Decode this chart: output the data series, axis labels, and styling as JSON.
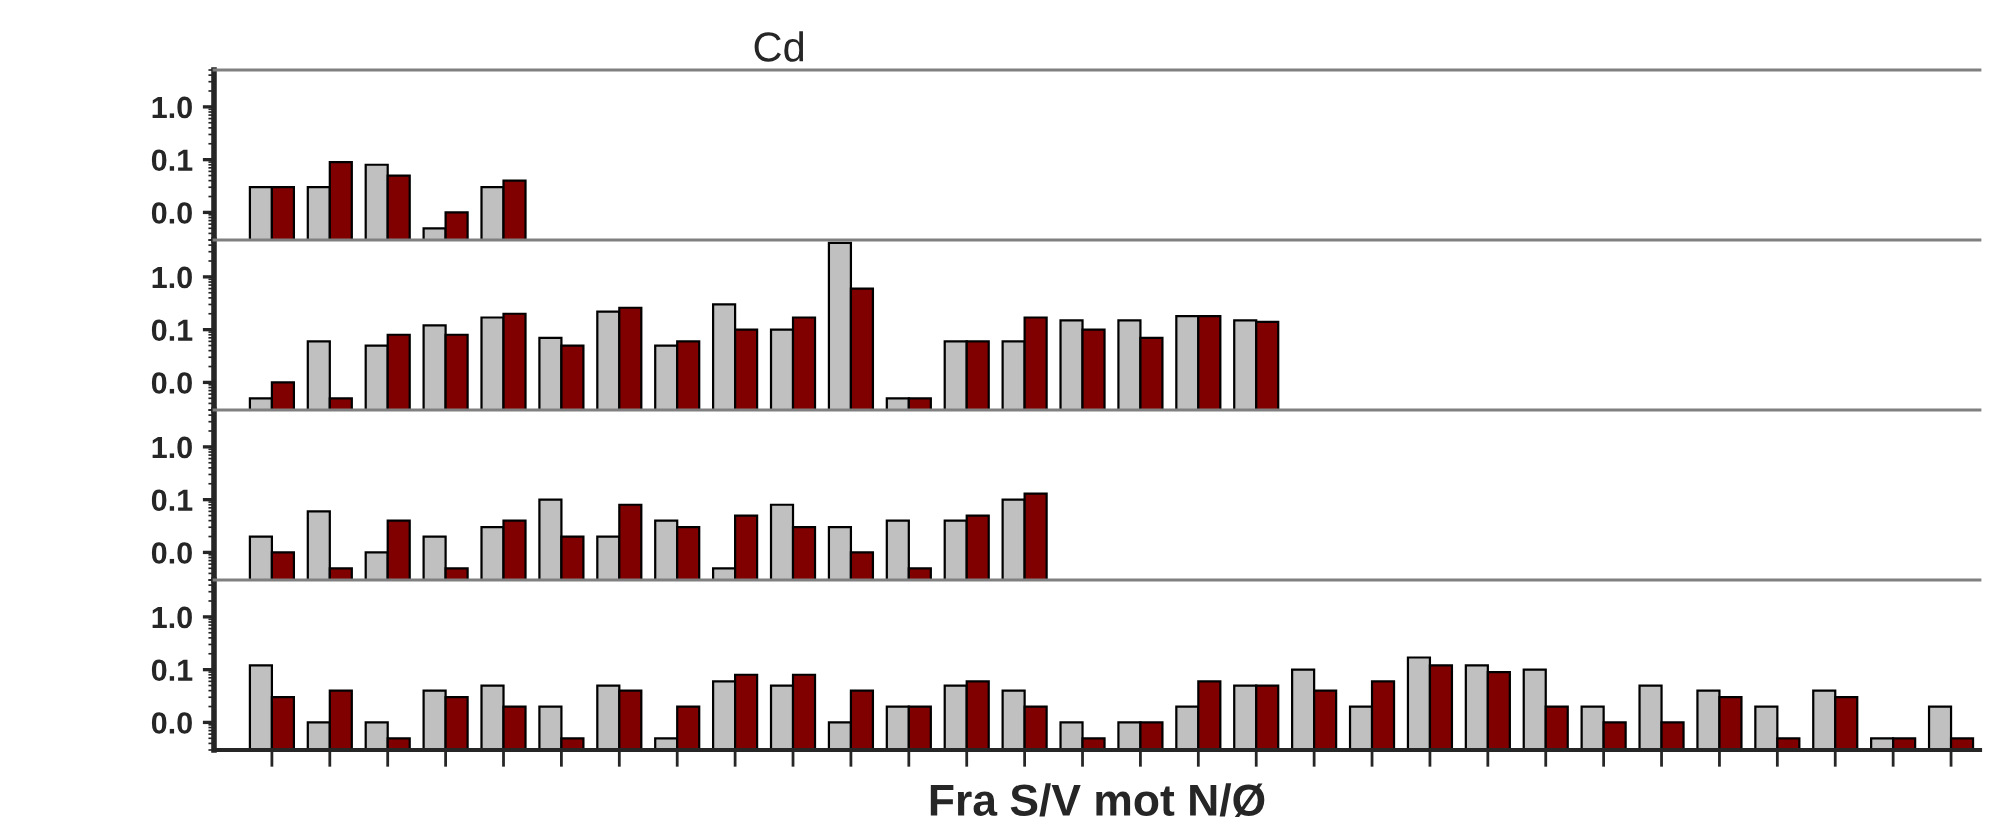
{
  "chart_data": [
    {
      "type": "bar",
      "title": "Cd",
      "log": true,
      "ylim": [
        0.003,
        5
      ],
      "yticks": [
        {
          "value": 1,
          "label": "1.0"
        },
        {
          "value": 0.1,
          "label": "0.1"
        },
        {
          "value": 0.01,
          "label": "0.0"
        }
      ],
      "tick_labels": "y",
      "grid": false,
      "categories": [
        null,
        null,
        null,
        null,
        null,
        null,
        null,
        null,
        null,
        null,
        null,
        null,
        null,
        null,
        null,
        null,
        null,
        null,
        null,
        null,
        null,
        null,
        null,
        null,
        null,
        null,
        null,
        null,
        null,
        null
      ],
      "series": [
        {
          "color": "#c0c0c0",
          "values": [
            0.03,
            0.03,
            0.08,
            0.005,
            0.03,
            null,
            null,
            null,
            null,
            null,
            null,
            null,
            null,
            null,
            null,
            null,
            null,
            null,
            null,
            null,
            null,
            null,
            null,
            null,
            null,
            null,
            null,
            null,
            null,
            null
          ]
        },
        {
          "color": "#800000",
          "values": [
            0.03,
            0.09,
            0.05,
            0.01,
            0.04,
            null,
            null,
            null,
            null,
            null,
            null,
            null,
            null,
            null,
            null,
            null,
            null,
            null,
            null,
            null,
            null,
            null,
            null,
            null,
            null,
            null,
            null,
            null,
            null,
            null
          ]
        }
      ]
    },
    {
      "type": "bar",
      "log": true,
      "ylim": [
        0.003,
        5
      ],
      "yticks": [
        {
          "value": 1,
          "label": "1.0"
        },
        {
          "value": 0.1,
          "label": "0.1"
        },
        {
          "value": 0.01,
          "label": "0.0"
        }
      ],
      "tick_labels": "y",
      "grid": false,
      "categories": [
        null,
        null,
        null,
        null,
        null,
        null,
        null,
        null,
        null,
        null,
        null,
        null,
        null,
        null,
        null,
        null,
        null,
        null,
        null,
        null,
        null,
        null,
        null,
        null,
        null,
        null,
        null,
        null,
        null,
        null
      ],
      "series": [
        {
          "color": "#c0c0c0",
          "values": [
            0.005,
            0.06,
            0.05,
            0.12,
            0.17,
            0.07,
            0.22,
            0.05,
            0.3,
            0.1,
            4.4,
            0.005,
            0.06,
            0.06,
            0.15,
            0.15,
            0.18,
            0.15,
            null,
            null,
            null,
            null,
            null,
            null,
            null,
            null,
            null,
            null,
            null,
            null
          ]
        },
        {
          "color": "#800000",
          "values": [
            0.01,
            0.005,
            0.08,
            0.08,
            0.2,
            0.05,
            0.26,
            0.06,
            0.1,
            0.17,
            0.6,
            0.005,
            0.06,
            0.17,
            0.1,
            0.07,
            0.18,
            0.14,
            null,
            null,
            null,
            null,
            null,
            null,
            null,
            null,
            null,
            null,
            null,
            null
          ]
        }
      ]
    },
    {
      "type": "bar",
      "log": true,
      "ylim": [
        0.003,
        5
      ],
      "yticks": [
        {
          "value": 1,
          "label": "1.0"
        },
        {
          "value": 0.1,
          "label": "0.1"
        },
        {
          "value": 0.01,
          "label": "0.0"
        }
      ],
      "tick_labels": "y",
      "grid": false,
      "categories": [
        null,
        null,
        null,
        null,
        null,
        null,
        null,
        null,
        null,
        null,
        null,
        null,
        null,
        null,
        null,
        null,
        null,
        null,
        null,
        null,
        null,
        null,
        null,
        null,
        null,
        null,
        null,
        null,
        null,
        null
      ],
      "series": [
        {
          "color": "#c0c0c0",
          "values": [
            0.02,
            0.06,
            0.01,
            0.02,
            0.03,
            0.1,
            0.02,
            0.04,
            0.005,
            0.08,
            0.03,
            0.04,
            0.04,
            0.1,
            null,
            null,
            null,
            null,
            null,
            null,
            null,
            null,
            null,
            null,
            null,
            null,
            null,
            null,
            null,
            null
          ]
        },
        {
          "color": "#800000",
          "values": [
            0.01,
            0.005,
            0.04,
            0.005,
            0.04,
            0.02,
            0.08,
            0.03,
            0.05,
            0.03,
            0.01,
            0.005,
            0.05,
            0.13,
            null,
            null,
            null,
            null,
            null,
            null,
            null,
            null,
            null,
            null,
            null,
            null,
            null,
            null,
            null,
            null
          ]
        }
      ]
    },
    {
      "type": "bar",
      "xlabel": "Fra S/V mot N/Ø",
      "log": true,
      "ylim": [
        0.003,
        5
      ],
      "yticks": [
        {
          "value": 1,
          "label": "1.0"
        },
        {
          "value": 0.1,
          "label": "0.1"
        },
        {
          "value": 0.01,
          "label": "0.0"
        }
      ],
      "tick_labels": "y",
      "grid": false,
      "categories": [
        null,
        null,
        null,
        null,
        null,
        null,
        null,
        null,
        null,
        null,
        null,
        null,
        null,
        null,
        null,
        null,
        null,
        null,
        null,
        null,
        null,
        null,
        null,
        null,
        null,
        null,
        null,
        null,
        null,
        null
      ],
      "series": [
        {
          "color": "#c0c0c0",
          "values": [
            0.12,
            0.01,
            0.01,
            0.04,
            0.05,
            0.02,
            0.05,
            0.005,
            0.06,
            0.05,
            0.01,
            0.02,
            0.05,
            0.04,
            0.01,
            0.01,
            0.02,
            0.05,
            0.1,
            0.02,
            0.17,
            0.12,
            0.1,
            0.02,
            0.05,
            0.04,
            0.02,
            0.04,
            0.005,
            0.02
          ]
        },
        {
          "color": "#800000",
          "values": [
            0.03,
            0.04,
            0.005,
            0.03,
            0.02,
            0.005,
            0.04,
            0.02,
            0.08,
            0.08,
            0.04,
            0.02,
            0.06,
            0.02,
            0.005,
            0.01,
            0.06,
            0.05,
            0.04,
            0.06,
            0.12,
            0.09,
            0.02,
            0.01,
            0.01,
            0.03,
            0.005,
            0.03,
            0.005,
            0.005
          ]
        }
      ]
    }
  ]
}
